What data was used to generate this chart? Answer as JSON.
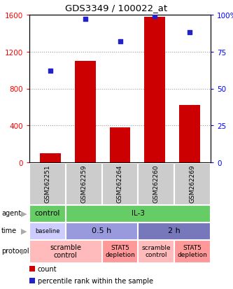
{
  "title": "GDS3349 / 100022_at",
  "samples": [
    "GSM262251",
    "GSM262259",
    "GSM262264",
    "GSM262260",
    "GSM262269"
  ],
  "counts": [
    100,
    1100,
    380,
    1580,
    620
  ],
  "percentile_ranks": [
    62,
    97,
    82,
    99,
    88
  ],
  "ylim_left": [
    0,
    1600
  ],
  "ylim_right": [
    0,
    100
  ],
  "yticks_left": [
    0,
    400,
    800,
    1200,
    1600
  ],
  "yticks_right": [
    0,
    25,
    50,
    75,
    100
  ],
  "bar_color": "#cc0000",
  "dot_color": "#2222cc",
  "agent_row": [
    {
      "label": "control",
      "start": 0,
      "end": 1,
      "color": "#66cc66"
    },
    {
      "label": "IL-3",
      "start": 1,
      "end": 5,
      "color": "#66cc66"
    }
  ],
  "time_row": [
    {
      "label": "baseline",
      "start": 0,
      "end": 1,
      "color": "#ccccff",
      "fontsize": 6
    },
    {
      "label": "0.5 h",
      "start": 1,
      "end": 3,
      "color": "#9999dd",
      "fontsize": 8
    },
    {
      "label": "2 h",
      "start": 3,
      "end": 5,
      "color": "#7777bb",
      "fontsize": 8
    }
  ],
  "protocol_row": [
    {
      "label": "scramble\ncontrol",
      "start": 0,
      "end": 2,
      "color": "#ffbbbb",
      "fontsize": 7
    },
    {
      "label": "STAT5\ndepletion",
      "start": 2,
      "end": 3,
      "color": "#ff9999",
      "fontsize": 6.5
    },
    {
      "label": "scramble\ncontrol",
      "start": 3,
      "end": 4,
      "color": "#ffbbbb",
      "fontsize": 6.5
    },
    {
      "label": "STAT5\ndepletion",
      "start": 4,
      "end": 5,
      "color": "#ff9999",
      "fontsize": 6.5
    }
  ],
  "row_labels": [
    "agent",
    "time",
    "protocol"
  ],
  "legend_items": [
    {
      "color": "#cc0000",
      "label": "count"
    },
    {
      "color": "#2222cc",
      "label": "percentile rank within the sample"
    }
  ],
  "bg_color": "#ffffff",
  "grid_color": "#999999",
  "sample_box_color": "#cccccc",
  "figwidth": 3.33,
  "figheight": 4.14,
  "dpi": 100
}
